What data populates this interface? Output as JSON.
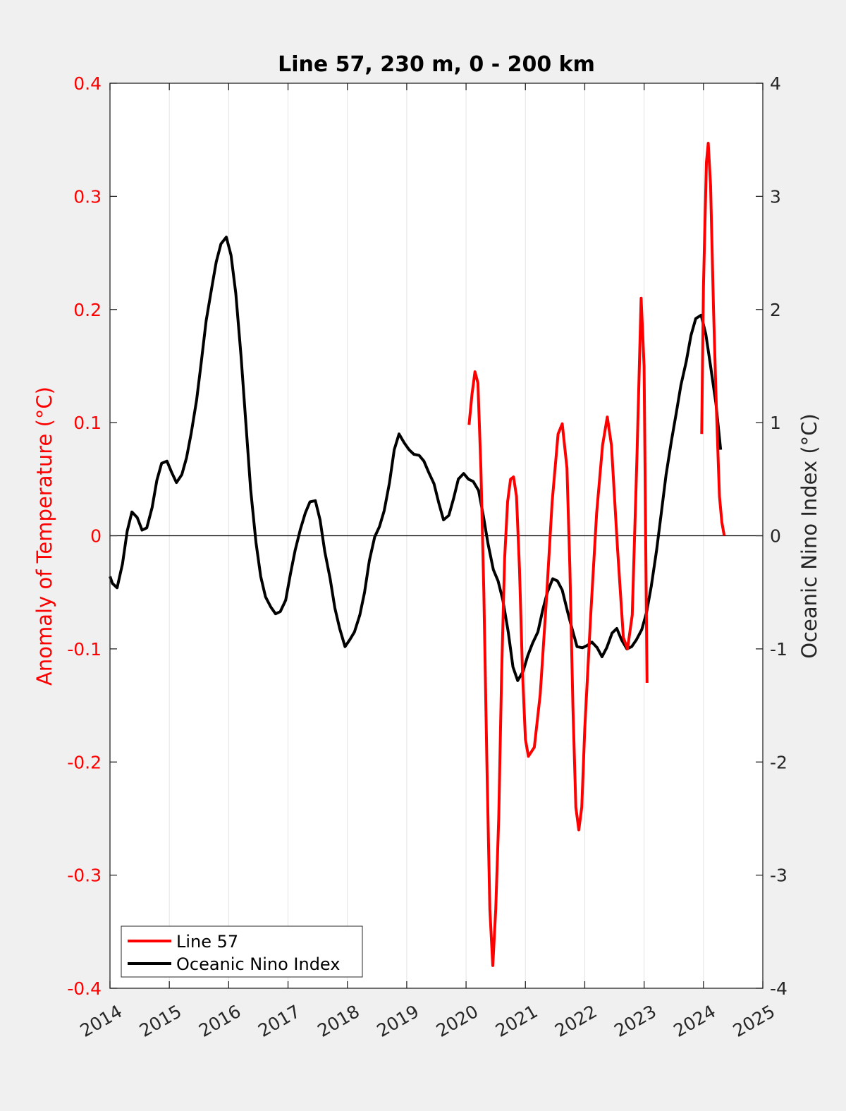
{
  "chart_data": {
    "type": "line",
    "title": "Line 57, 230 m, 0 - 200 km",
    "ylabel_left": "Anomaly of Temperature (°C)",
    "ylabel_right": "Oceanic Nino Index (°C)",
    "xlabel": "",
    "xlim": [
      2014,
      2025
    ],
    "ylim_left": [
      -0.4,
      0.4
    ],
    "ylim_right": [
      -4,
      4
    ],
    "x_ticks": [
      "2014",
      "2015",
      "2016",
      "2017",
      "2018",
      "2019",
      "2020",
      "2021",
      "2022",
      "2023",
      "2024",
      "2025"
    ],
    "y_ticks_left": [
      "-0.4",
      "-0.3",
      "-0.2",
      "-0.1",
      "0",
      "0.1",
      "0.2",
      "0.3",
      "0.4"
    ],
    "y_ticks_right": [
      "-4",
      "-3",
      "-2",
      "-1",
      "0",
      "1",
      "2",
      "3",
      "4"
    ],
    "grid": "vertical",
    "zero_line": true,
    "legend_position": "bottom-left",
    "series": [
      {
        "name": "Line 57",
        "color": "#ff0000",
        "axis": "left",
        "segments": [
          [
            [
              2020.05,
              0.098
            ],
            [
              2020.1,
              0.125
            ],
            [
              2020.15,
              0.145
            ],
            [
              2020.2,
              0.135
            ],
            [
              2020.25,
              0.06
            ],
            [
              2020.3,
              -0.05
            ],
            [
              2020.35,
              -0.2
            ],
            [
              2020.4,
              -0.33
            ],
            [
              2020.45,
              -0.38
            ],
            [
              2020.5,
              -0.33
            ],
            [
              2020.55,
              -0.25
            ],
            [
              2020.6,
              -0.12
            ],
            [
              2020.65,
              -0.02
            ],
            [
              2020.7,
              0.03
            ],
            [
              2020.75,
              0.05
            ],
            [
              2020.8,
              0.052
            ],
            [
              2020.85,
              0.035
            ],
            [
              2020.9,
              -0.03
            ],
            [
              2020.95,
              -0.12
            ],
            [
              2021.0,
              -0.18
            ],
            [
              2021.05,
              -0.195
            ],
            [
              2021.15,
              -0.187
            ],
            [
              2021.25,
              -0.14
            ],
            [
              2021.35,
              -0.06
            ],
            [
              2021.45,
              0.03
            ],
            [
              2021.55,
              0.09
            ],
            [
              2021.62,
              0.099
            ],
            [
              2021.7,
              0.06
            ],
            [
              2021.75,
              -0.03
            ],
            [
              2021.8,
              -0.15
            ],
            [
              2021.85,
              -0.24
            ],
            [
              2021.9,
              -0.26
            ],
            [
              2021.95,
              -0.24
            ],
            [
              2022.0,
              -0.17
            ],
            [
              2022.1,
              -0.07
            ],
            [
              2022.2,
              0.02
            ],
            [
              2022.3,
              0.08
            ],
            [
              2022.38,
              0.105
            ],
            [
              2022.45,
              0.08
            ],
            [
              2022.55,
              -0.01
            ],
            [
              2022.65,
              -0.09
            ],
            [
              2022.72,
              -0.1
            ],
            [
              2022.8,
              -0.07
            ],
            [
              2022.88,
              0.07
            ],
            [
              2022.95,
              0.21
            ],
            [
              2023.0,
              0.15
            ],
            [
              2023.05,
              -0.13
            ]
          ],
          [
            [
              2023.97,
              0.09
            ],
            [
              2024.0,
              0.22
            ],
            [
              2024.05,
              0.33
            ],
            [
              2024.08,
              0.347
            ],
            [
              2024.12,
              0.31
            ],
            [
              2024.17,
              0.2
            ],
            [
              2024.22,
              0.11
            ],
            [
              2024.27,
              0.035
            ],
            [
              2024.31,
              0.012
            ],
            [
              2024.35,
              0.0
            ]
          ]
        ]
      },
      {
        "name": "Oceanic Nino Index",
        "color": "#000000",
        "axis": "right",
        "segments": [
          [
            [
              2014.0,
              -0.36
            ],
            [
              2014.04,
              -0.42
            ],
            [
              2014.12,
              -0.46
            ],
            [
              2014.21,
              -0.25
            ],
            [
              2014.29,
              0.04
            ],
            [
              2014.37,
              0.21
            ],
            [
              2014.46,
              0.16
            ],
            [
              2014.54,
              0.05
            ],
            [
              2014.62,
              0.07
            ],
            [
              2014.71,
              0.25
            ],
            [
              2014.79,
              0.49
            ],
            [
              2014.87,
              0.64
            ],
            [
              2014.96,
              0.66
            ],
            [
              2015.04,
              0.56
            ],
            [
              2015.12,
              0.47
            ],
            [
              2015.21,
              0.54
            ],
            [
              2015.29,
              0.69
            ],
            [
              2015.37,
              0.91
            ],
            [
              2015.46,
              1.2
            ],
            [
              2015.54,
              1.54
            ],
            [
              2015.62,
              1.9
            ],
            [
              2015.71,
              2.18
            ],
            [
              2015.79,
              2.42
            ],
            [
              2015.87,
              2.58
            ],
            [
              2015.96,
              2.64
            ],
            [
              2016.04,
              2.48
            ],
            [
              2016.12,
              2.14
            ],
            [
              2016.21,
              1.58
            ],
            [
              2016.29,
              0.99
            ],
            [
              2016.37,
              0.41
            ],
            [
              2016.46,
              -0.06
            ],
            [
              2016.54,
              -0.36
            ],
            [
              2016.62,
              -0.54
            ],
            [
              2016.71,
              -0.63
            ],
            [
              2016.79,
              -0.69
            ],
            [
              2016.87,
              -0.67
            ],
            [
              2016.96,
              -0.57
            ],
            [
              2017.04,
              -0.34
            ],
            [
              2017.12,
              -0.13
            ],
            [
              2017.21,
              0.06
            ],
            [
              2017.29,
              0.2
            ],
            [
              2017.37,
              0.3
            ],
            [
              2017.46,
              0.31
            ],
            [
              2017.54,
              0.14
            ],
            [
              2017.62,
              -0.14
            ],
            [
              2017.71,
              -0.38
            ],
            [
              2017.79,
              -0.64
            ],
            [
              2017.87,
              -0.82
            ],
            [
              2017.96,
              -0.98
            ],
            [
              2018.04,
              -0.92
            ],
            [
              2018.12,
              -0.85
            ],
            [
              2018.21,
              -0.7
            ],
            [
              2018.29,
              -0.5
            ],
            [
              2018.37,
              -0.22
            ],
            [
              2018.46,
              -0.01
            ],
            [
              2018.54,
              0.08
            ],
            [
              2018.62,
              0.22
            ],
            [
              2018.71,
              0.47
            ],
            [
              2018.79,
              0.76
            ],
            [
              2018.87,
              0.9
            ],
            [
              2018.96,
              0.82
            ],
            [
              2019.04,
              0.76
            ],
            [
              2019.12,
              0.72
            ],
            [
              2019.21,
              0.71
            ],
            [
              2019.29,
              0.66
            ],
            [
              2019.37,
              0.56
            ],
            [
              2019.46,
              0.46
            ],
            [
              2019.54,
              0.29
            ],
            [
              2019.62,
              0.14
            ],
            [
              2019.71,
              0.18
            ],
            [
              2019.79,
              0.33
            ],
            [
              2019.87,
              0.5
            ],
            [
              2019.96,
              0.55
            ],
            [
              2020.04,
              0.5
            ],
            [
              2020.12,
              0.48
            ],
            [
              2020.21,
              0.4
            ],
            [
              2020.29,
              0.18
            ],
            [
              2020.37,
              -0.07
            ],
            [
              2020.46,
              -0.3
            ],
            [
              2020.54,
              -0.4
            ],
            [
              2020.62,
              -0.57
            ],
            [
              2020.71,
              -0.85
            ],
            [
              2020.79,
              -1.16
            ],
            [
              2020.87,
              -1.28
            ],
            [
              2020.96,
              -1.2
            ],
            [
              2021.04,
              -1.06
            ],
            [
              2021.12,
              -0.95
            ],
            [
              2021.21,
              -0.85
            ],
            [
              2021.29,
              -0.66
            ],
            [
              2021.37,
              -0.5
            ],
            [
              2021.46,
              -0.38
            ],
            [
              2021.54,
              -0.4
            ],
            [
              2021.62,
              -0.48
            ],
            [
              2021.71,
              -0.67
            ],
            [
              2021.79,
              -0.83
            ],
            [
              2021.87,
              -0.98
            ],
            [
              2021.96,
              -0.99
            ],
            [
              2022.04,
              -0.97
            ],
            [
              2022.12,
              -0.94
            ],
            [
              2022.21,
              -0.99
            ],
            [
              2022.29,
              -1.07
            ],
            [
              2022.37,
              -0.99
            ],
            [
              2022.46,
              -0.86
            ],
            [
              2022.54,
              -0.82
            ],
            [
              2022.62,
              -0.92
            ],
            [
              2022.71,
              -1.0
            ],
            [
              2022.79,
              -0.98
            ],
            [
              2022.87,
              -0.92
            ],
            [
              2022.96,
              -0.83
            ],
            [
              2023.04,
              -0.68
            ],
            [
              2023.12,
              -0.45
            ],
            [
              2023.21,
              -0.13
            ],
            [
              2023.29,
              0.2
            ],
            [
              2023.37,
              0.54
            ],
            [
              2023.46,
              0.84
            ],
            [
              2023.54,
              1.08
            ],
            [
              2023.62,
              1.33
            ],
            [
              2023.71,
              1.54
            ],
            [
              2023.79,
              1.77
            ],
            [
              2023.87,
              1.92
            ],
            [
              2023.96,
              1.95
            ],
            [
              2024.04,
              1.78
            ],
            [
              2024.12,
              1.5
            ],
            [
              2024.21,
              1.17
            ],
            [
              2024.29,
              0.76
            ]
          ]
        ]
      }
    ]
  }
}
